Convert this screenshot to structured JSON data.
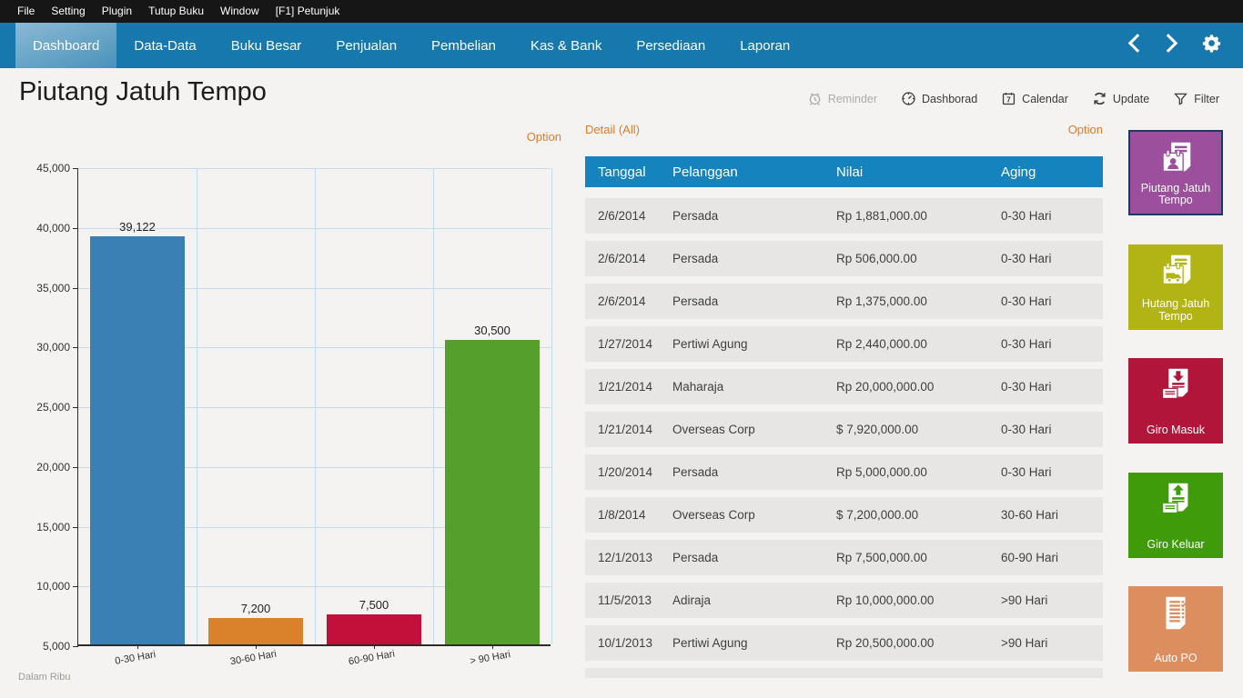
{
  "menubar": {
    "items": [
      "File",
      "Setting",
      "Plugin",
      "Tutup Buku",
      "Window",
      "[F1] Petunjuk"
    ]
  },
  "navbar": {
    "tabs": [
      {
        "label": "Dashboard",
        "active": true
      },
      {
        "label": "Data-Data",
        "active": false
      },
      {
        "label": "Buku Besar",
        "active": false
      },
      {
        "label": "Penjualan",
        "active": false
      },
      {
        "label": "Pembelian",
        "active": false
      },
      {
        "label": "Kas & Bank",
        "active": false
      },
      {
        "label": "Persediaan",
        "active": false
      },
      {
        "label": "Laporan",
        "active": false
      }
    ],
    "icons": [
      "chevron-left-icon",
      "chevron-right-icon",
      "settings-gear-icon"
    ]
  },
  "header": {
    "title": "Piutang Jatuh Tempo",
    "actions": [
      {
        "label": "Reminder",
        "icon": "reminder-icon",
        "disabled": true
      },
      {
        "label": "Dashborad",
        "icon": "dashboard-gauge-icon",
        "disabled": false
      },
      {
        "label": "Calendar",
        "icon": "calendar-icon",
        "disabled": false
      },
      {
        "label": "Update",
        "icon": "update-icon",
        "disabled": false
      },
      {
        "label": "Filter",
        "icon": "filter-icon",
        "disabled": false
      }
    ]
  },
  "chart_panel": {
    "option_label": "Option",
    "footnote": "Dalam Ribu"
  },
  "chart_data": {
    "type": "bar",
    "categories": [
      "0-30 Hari",
      "30-60 Hari",
      "60-90 Hari",
      "> 90 Hari"
    ],
    "values": [
      39122,
      7200,
      7500,
      30500
    ],
    "data_labels": [
      "39,122",
      "7,200",
      "7,500",
      "30,500"
    ],
    "bar_colors": [
      "#3a80b4",
      "#d9822b",
      "#c1113a",
      "#55a02c"
    ],
    "title": "",
    "xlabel": "",
    "ylabel": "",
    "ylim": [
      5000,
      45000
    ],
    "ytick_step": 5000,
    "grid": true,
    "legend_position": "none",
    "unit_note": "Dalam Ribu"
  },
  "table_panel": {
    "title": "Detail (All)",
    "option_label": "Option",
    "columns": [
      "Tanggal",
      "Pelanggan",
      "Nilai",
      "Aging"
    ],
    "rows": [
      [
        "2/6/2014",
        "Persada",
        "Rp 1,881,000.00",
        "0-30 Hari"
      ],
      [
        "2/6/2014",
        "Persada",
        "Rp 506,000.00",
        "0-30 Hari"
      ],
      [
        "2/6/2014",
        "Persada",
        "Rp 1,375,000.00",
        "0-30 Hari"
      ],
      [
        "1/27/2014",
        "Pertiwi Agung",
        "Rp 2,440,000.00",
        "0-30 Hari"
      ],
      [
        "1/21/2014",
        "Maharaja",
        "Rp 20,000,000.00",
        "0-30 Hari"
      ],
      [
        "1/21/2014",
        "Overseas Corp",
        "$ 7,920,000.00",
        "0-30 Hari"
      ],
      [
        "1/20/2014",
        "Persada",
        "Rp 5,000,000.00",
        "0-30 Hari"
      ],
      [
        "1/8/2014",
        "Overseas Corp",
        "$ 7,200,000.00",
        "30-60 Hari"
      ],
      [
        "12/1/2013",
        "Persada",
        "Rp 7,500,000.00",
        "60-90 Hari"
      ],
      [
        "11/5/2013",
        "Adiraja",
        "Rp 10,000,000.00",
        ">90 Hari"
      ],
      [
        "10/1/2013",
        "Pertiwi Agung",
        "Rp 20,500,000.00",
        ">90 Hari"
      ]
    ]
  },
  "tiles": [
    {
      "label": "Piutang Jatuh Tempo",
      "color": "#9b4f9c",
      "icon": "receivable-due-icon",
      "selected": true
    },
    {
      "label": "Hutang Jatuh Tempo",
      "color": "#b2b415",
      "icon": "payable-due-icon",
      "selected": false
    },
    {
      "label": "Giro Masuk",
      "color": "#b11539",
      "icon": "incoming-giro-icon",
      "selected": false
    },
    {
      "label": "Giro Keluar",
      "color": "#3f9b09",
      "icon": "outgoing-giro-icon",
      "selected": false
    },
    {
      "label": "Auto PO",
      "color": "#dd8e5e",
      "icon": "auto-po-icon",
      "selected": false
    }
  ],
  "colors": {
    "menubar_bg": "#161616",
    "navbar_bg": "#1778ad",
    "active_tab_bg": "#5d9fc4",
    "table_header_bg": "#1583bd",
    "row_bg": "#e7e6e5",
    "accent_link": "#e07b2d",
    "gridline": "#c3dbea",
    "page_bg": "#f4f3f1",
    "selected_tile_border": "#1c3868"
  }
}
